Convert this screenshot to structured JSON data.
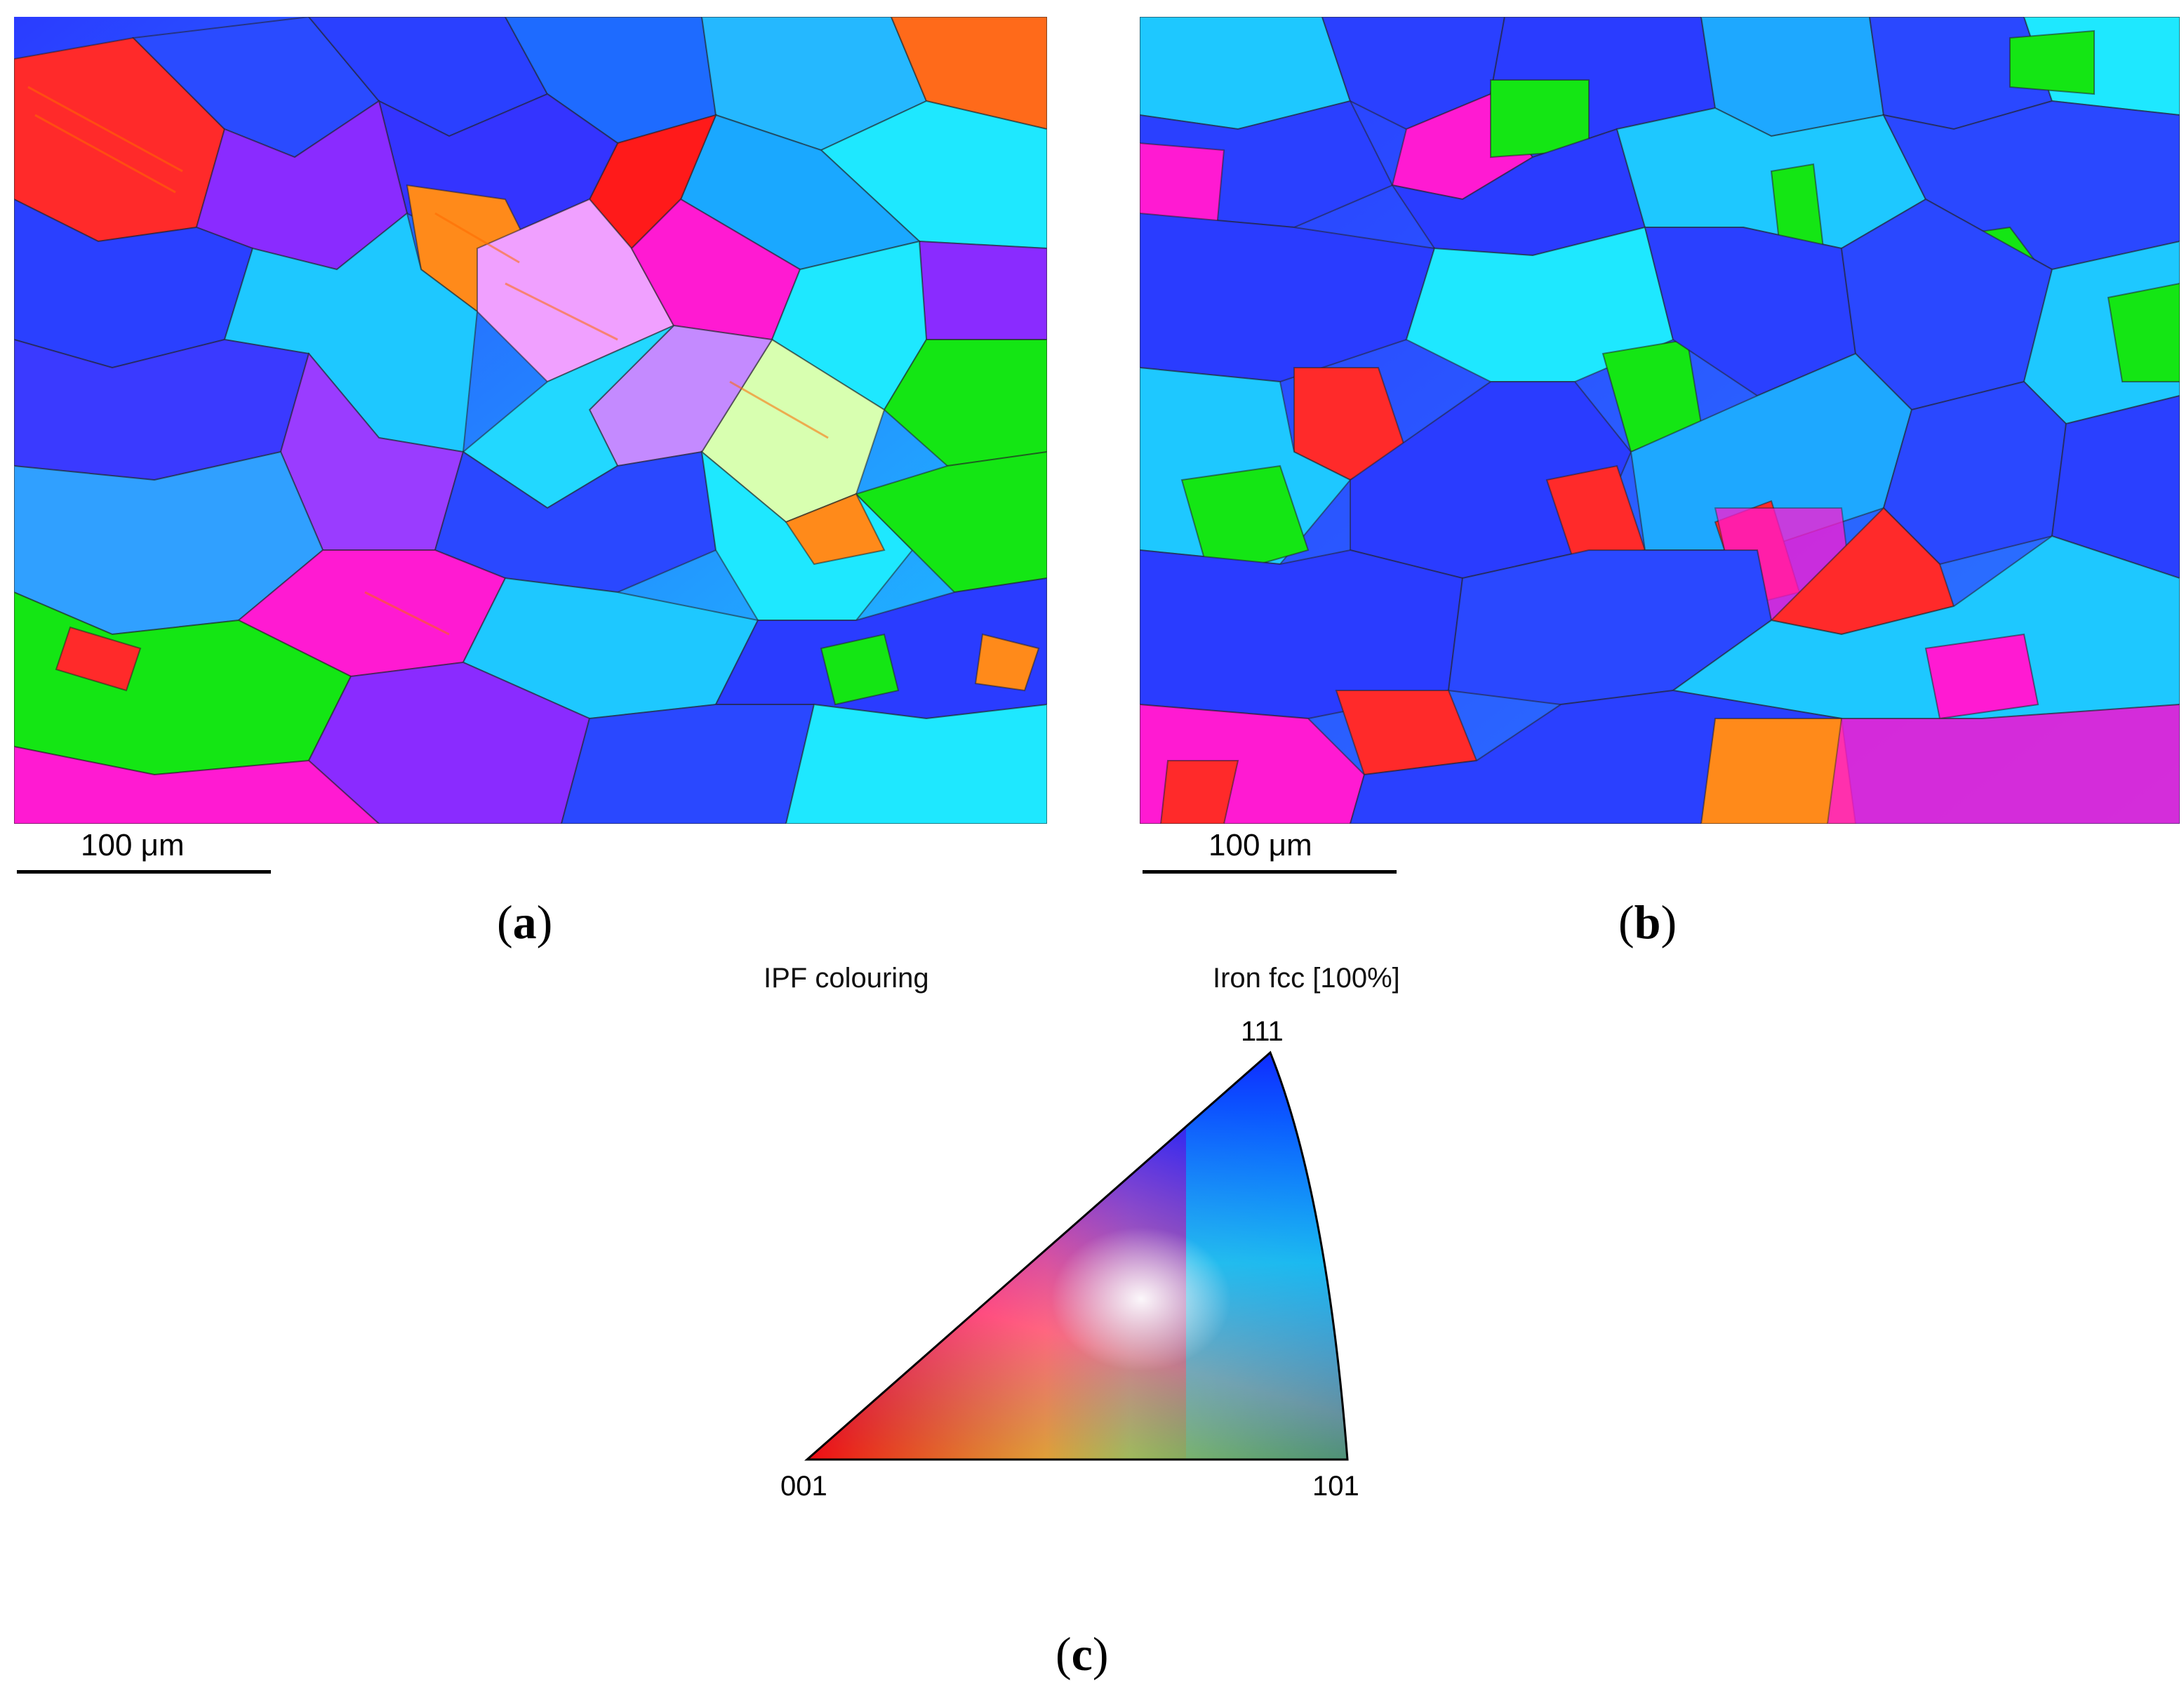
{
  "panels": [
    {
      "id": "a",
      "label": "a",
      "scale_bar": "100 μm"
    },
    {
      "id": "b",
      "label": "b",
      "scale_bar": "100 μm"
    }
  ],
  "legend": {
    "label": "c",
    "title_left": "IPF colouring",
    "title_right": "Iron fcc [100%]",
    "corner_top": "111",
    "corner_left": "001",
    "corner_right": "101"
  },
  "colors": {
    "red_001": "#ff1a1a",
    "green_101": "#14e614",
    "blue_111": "#1a2bff",
    "cyan": "#18d8ff",
    "magenta": "#ff1ad2",
    "violet": "#8a2bff",
    "orange": "#ff8a1a"
  }
}
